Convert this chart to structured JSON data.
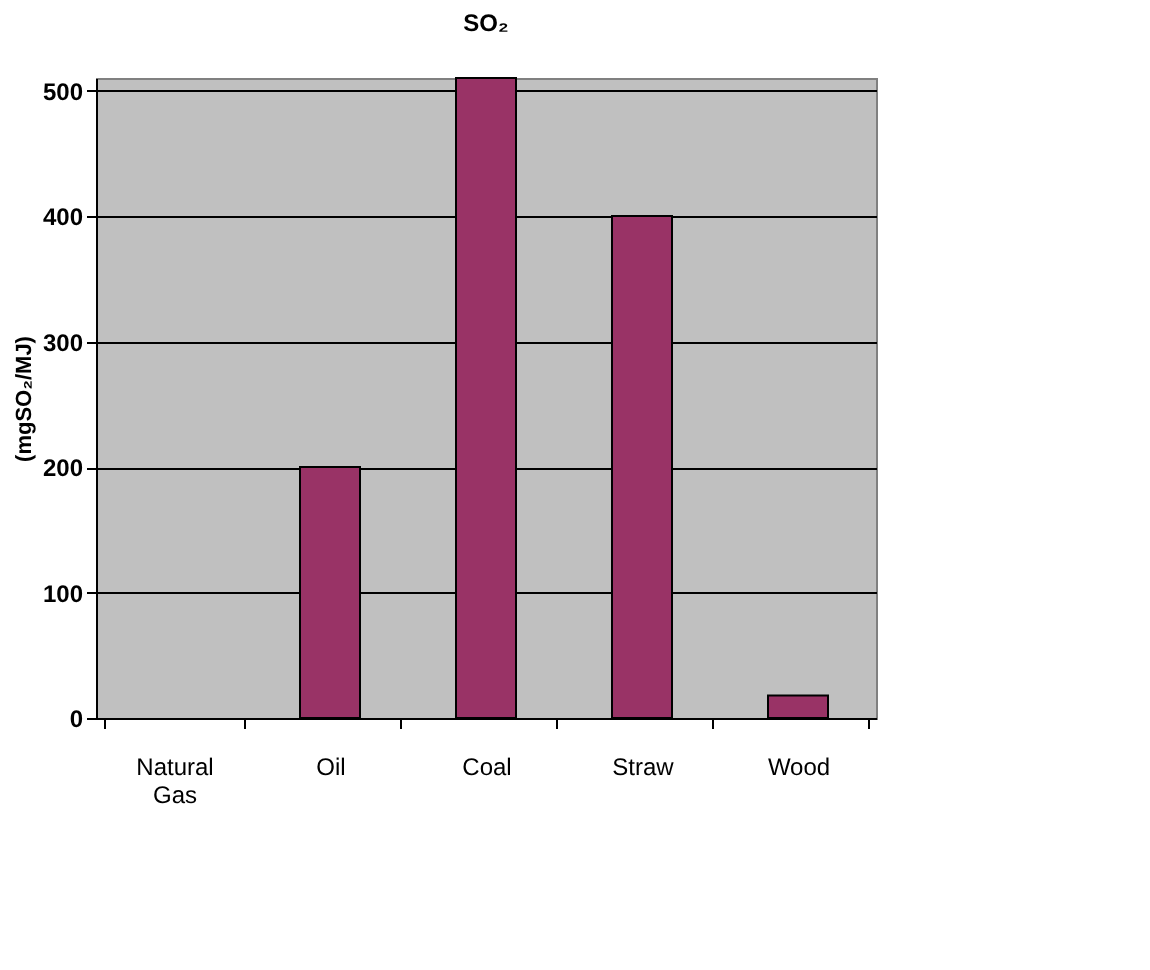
{
  "chart_data": {
    "type": "bar",
    "title": "SO₂",
    "ylabel": "(mgSO₂/MJ)",
    "categories": [
      "Natural Gas",
      "Oil",
      "Coal",
      "Straw",
      "Wood"
    ],
    "values": [
      null,
      200,
      510,
      400,
      18
    ],
    "color": "#993366",
    "ylim": [
      0,
      510
    ],
    "yticks": [
      0,
      100,
      200,
      300,
      400,
      500
    ],
    "grid": "y"
  }
}
